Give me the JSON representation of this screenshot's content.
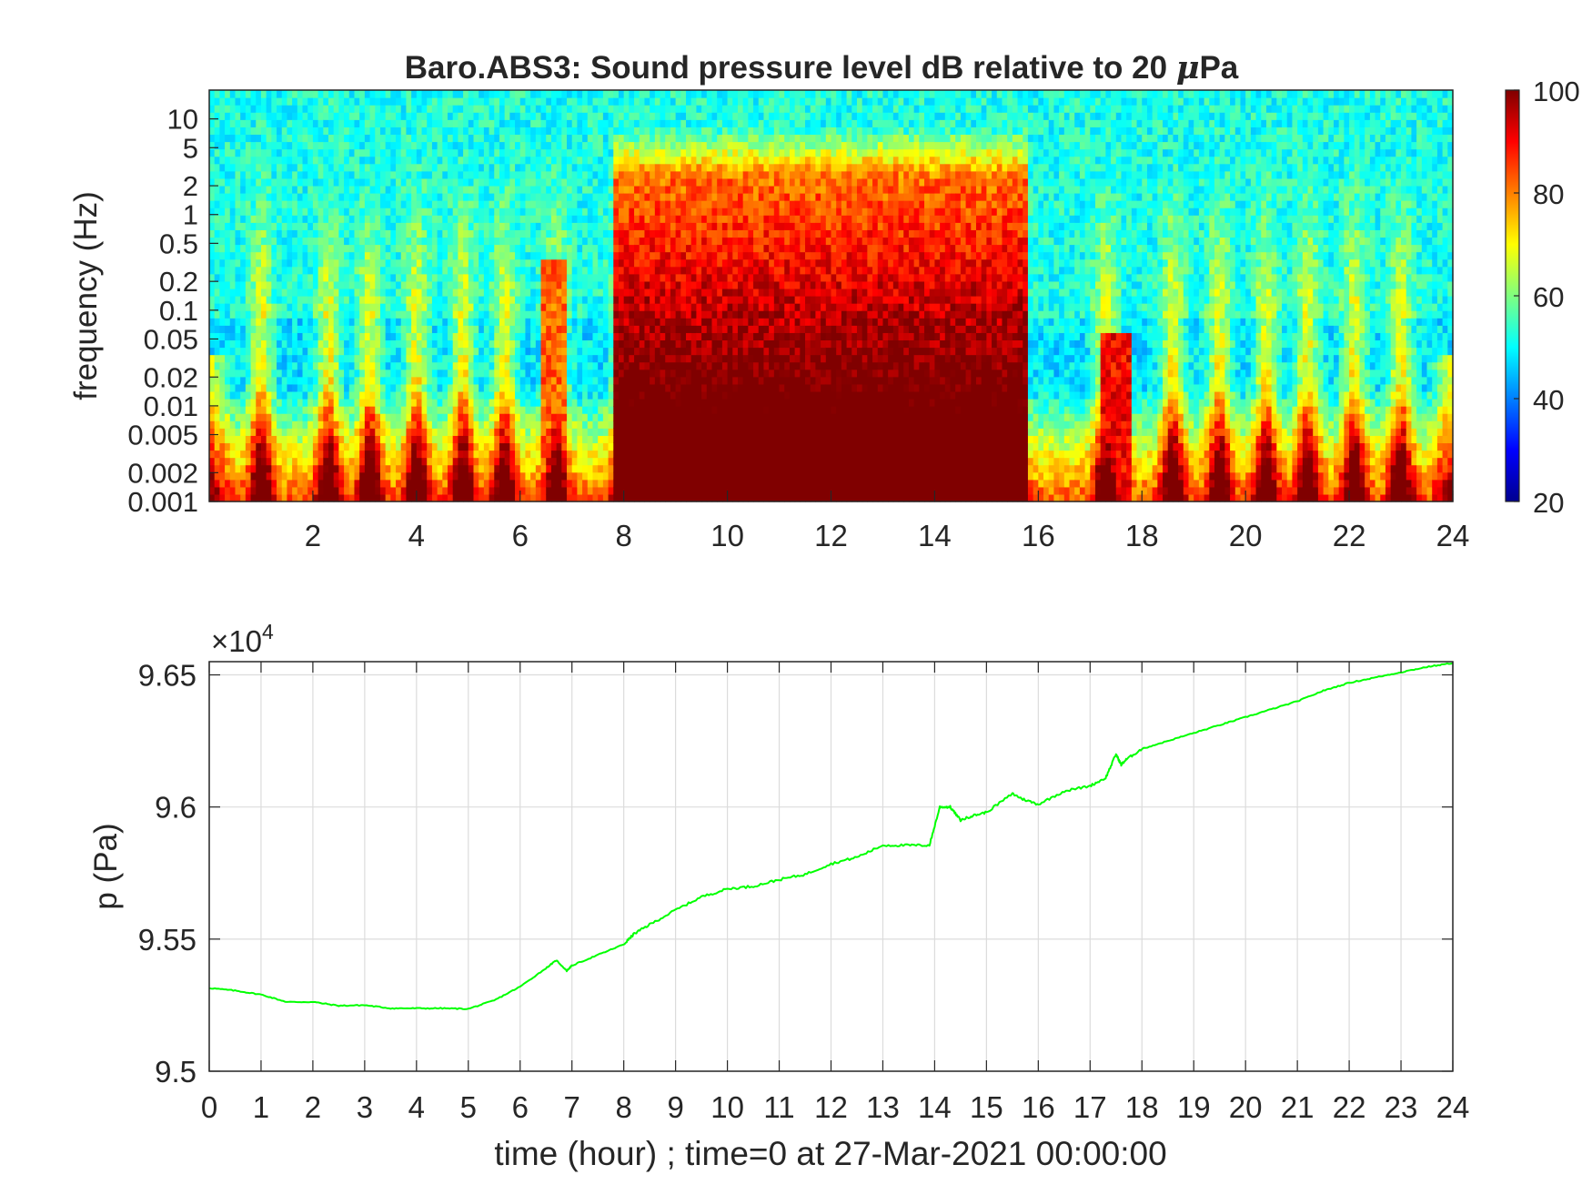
{
  "chart_data": [
    {
      "type": "heatmap",
      "title": "Baro.ABS3: Sound pressure level dB relative to 20 ",
      "title_mu": "μ",
      "title_tail": "Pa",
      "ylabel": "frequency (Hz)",
      "xlabel": "",
      "xlim": [
        0,
        24
      ],
      "ylim": [
        0.001,
        20
      ],
      "y_scale": "log",
      "x_ticks": [
        "2",
        "4",
        "6",
        "8",
        "10",
        "12",
        "14",
        "16",
        "18",
        "20",
        "22",
        "24"
      ],
      "y_ticks": [
        "0.001",
        "0.002",
        "0.005",
        "0.01",
        "0.02",
        "0.05",
        "0.1",
        "0.2",
        "0.5",
        "1",
        "2",
        "5",
        "10"
      ],
      "colorbar": {
        "colormap": "jet",
        "range": [
          20,
          100
        ],
        "ticks": [
          "20",
          "40",
          "60",
          "80",
          "100"
        ]
      },
      "color_low": "#00008f",
      "color_high": "#800000",
      "active_period_hours": [
        7.8,
        15.8
      ],
      "peak_level_db": 100,
      "background_level_db": 50
    },
    {
      "type": "line",
      "title": "",
      "xlabel": "time (hour) ; time=0 at 27-Mar-2021 00:00:00",
      "ylabel": "p (Pa)",
      "exponent_label": "×10",
      "exponent_power": "4",
      "xlim": [
        0,
        24
      ],
      "ylim": [
        95000,
        96550
      ],
      "grid": true,
      "x_ticks": [
        "0",
        "1",
        "2",
        "3",
        "4",
        "5",
        "6",
        "7",
        "8",
        "9",
        "10",
        "11",
        "12",
        "13",
        "14",
        "15",
        "16",
        "17",
        "18",
        "19",
        "20",
        "21",
        "22",
        "23",
        "24"
      ],
      "y_ticks": [
        {
          "value": 95000,
          "label": "9.5"
        },
        {
          "value": 95500,
          "label": "9.55"
        },
        {
          "value": 96000,
          "label": "9.6"
        },
        {
          "value": 96500,
          "label": "9.65"
        }
      ],
      "line_color": "#00ff00",
      "series": [
        {
          "x": [
            0,
            0.5,
            1,
            1.5,
            2,
            2.5,
            3,
            3.5,
            4,
            4.5,
            5,
            5.5,
            6,
            6.5,
            6.7,
            6.9,
            7,
            7.5,
            8,
            8.2,
            8.5,
            9,
            9.5,
            10,
            10.5,
            11,
            11.5,
            12,
            12.5,
            13,
            13.5,
            13.9,
            14.1,
            14.3,
            14.5,
            14.7,
            15,
            15.5,
            15.7,
            16,
            16.5,
            17,
            17.3,
            17.5,
            17.6,
            17.7,
            18,
            18.5,
            19,
            19.5,
            20,
            20.5,
            21,
            21.5,
            22,
            22.5,
            23,
            23.5,
            24
          ],
          "y": [
            95315,
            95305,
            95290,
            95262,
            95262,
            95248,
            95250,
            95238,
            95238,
            95238,
            95236,
            95268,
            95320,
            95390,
            95420,
            95380,
            95400,
            95440,
            95480,
            95520,
            95555,
            95610,
            95660,
            95690,
            95700,
            95725,
            95745,
            95785,
            95810,
            95855,
            95855,
            95855,
            96000,
            96000,
            95950,
            95965,
            95980,
            96050,
            96030,
            96010,
            96060,
            96080,
            96110,
            96200,
            96160,
            96180,
            96220,
            96250,
            96280,
            96310,
            96340,
            96370,
            96400,
            96440,
            96470,
            96490,
            96510,
            96530,
            96545
          ]
        }
      ]
    }
  ]
}
